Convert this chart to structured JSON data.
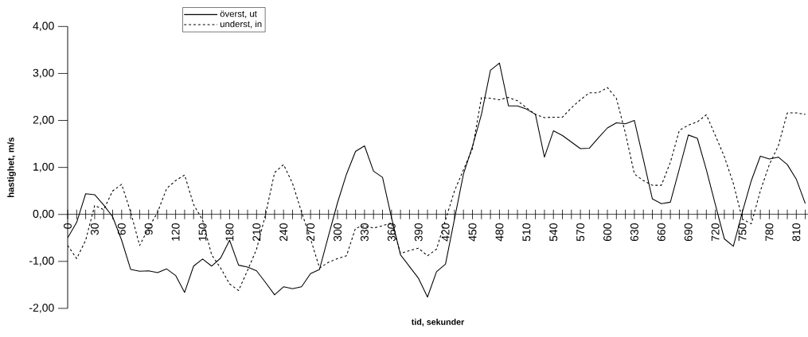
{
  "chart_data": {
    "type": "line",
    "xlabel": "tid, sekunder",
    "ylabel": "hastighet, m/s",
    "x": [
      0,
      10,
      20,
      30,
      40,
      50,
      60,
      70,
      80,
      90,
      100,
      110,
      120,
      130,
      140,
      150,
      160,
      170,
      180,
      190,
      200,
      210,
      220,
      230,
      240,
      250,
      260,
      270,
      280,
      290,
      300,
      310,
      320,
      330,
      340,
      350,
      360,
      370,
      380,
      390,
      400,
      410,
      420,
      430,
      440,
      450,
      460,
      470,
      480,
      490,
      500,
      510,
      520,
      530,
      540,
      550,
      560,
      570,
      580,
      590,
      600,
      610,
      620,
      630,
      640,
      650,
      660,
      670,
      680,
      690,
      700,
      710,
      720,
      730,
      740,
      750,
      760,
      770,
      780,
      790,
      800,
      810,
      820
    ],
    "series": [
      {
        "name": "överst, ut",
        "color": "#000000",
        "line_style": "solid",
        "values": [
          -0.5,
          -0.17,
          0.44,
          0.42,
          0.2,
          -0.05,
          -0.55,
          -1.17,
          -1.21,
          -1.2,
          -1.24,
          -1.16,
          -1.3,
          -1.66,
          -1.1,
          -0.95,
          -1.1,
          -0.93,
          -0.55,
          -1.08,
          -1.12,
          -1.2,
          -1.45,
          -1.71,
          -1.54,
          -1.58,
          -1.54,
          -1.26,
          -1.17,
          -0.45,
          0.25,
          0.86,
          1.34,
          1.46,
          0.92,
          0.79,
          -0.07,
          -0.86,
          -1.11,
          -1.36,
          -1.76,
          -1.22,
          -1.06,
          -0.1,
          0.86,
          1.45,
          2.13,
          3.07,
          3.22,
          2.31,
          2.31,
          2.24,
          2.13,
          1.22,
          1.78,
          1.68,
          1.54,
          1.4,
          1.41,
          1.63,
          1.84,
          1.95,
          1.93,
          2.0,
          1.17,
          0.33,
          0.23,
          0.26,
          0.97,
          1.69,
          1.62,
          0.95,
          0.21,
          -0.52,
          -0.68,
          0.05,
          0.72,
          1.24,
          1.18,
          1.22,
          1.06,
          0.75,
          0.23
        ]
      },
      {
        "name": "underst, in",
        "color": "#000000",
        "line_style": "dashed",
        "values": [
          -0.66,
          -0.94,
          -0.55,
          0.19,
          0.1,
          0.5,
          0.64,
          0.05,
          -0.66,
          -0.29,
          0.05,
          0.55,
          0.72,
          0.84,
          0.21,
          -0.12,
          -0.86,
          -1.14,
          -1.48,
          -1.62,
          -1.19,
          -0.74,
          0.0,
          0.89,
          1.06,
          0.66,
          0.05,
          -0.52,
          -1.14,
          -1.02,
          -0.94,
          -0.88,
          -0.29,
          -0.24,
          -0.29,
          -0.24,
          -0.18,
          -0.83,
          -0.77,
          -0.72,
          -0.88,
          -0.74,
          -0.12,
          0.5,
          0.95,
          1.4,
          2.49,
          2.47,
          2.44,
          2.49,
          2.42,
          2.27,
          2.13,
          2.06,
          2.07,
          2.07,
          2.27,
          2.44,
          2.59,
          2.59,
          2.7,
          2.47,
          1.73,
          0.86,
          0.72,
          0.62,
          0.62,
          1.11,
          1.79,
          1.9,
          1.97,
          2.12,
          1.68,
          1.23,
          0.66,
          -0.1,
          -0.2,
          0.5,
          1.06,
          1.46,
          2.16,
          2.16,
          2.13
        ]
      }
    ],
    "xlim": [
      0,
      823
    ],
    "ylim": [
      -2,
      4
    ],
    "xticks": [
      0,
      {
        "value": 10,
        "label": null
      },
      {
        "value": 20,
        "label": null
      },
      30,
      {
        "value": 40,
        "label": null
      },
      {
        "value": 50,
        "label": null
      },
      60,
      {
        "value": 70,
        "label": null
      },
      {
        "value": 80,
        "label": null
      },
      90,
      {
        "value": 100,
        "label": null
      },
      {
        "value": 110,
        "label": null
      },
      120,
      {
        "value": 130,
        "label": null
      },
      {
        "value": 140,
        "label": null
      },
      150,
      {
        "value": 160,
        "label": null
      },
      {
        "value": 170,
        "label": null
      },
      180,
      {
        "value": 190,
        "label": null
      },
      {
        "value": 200,
        "label": null
      },
      210,
      {
        "value": 220,
        "label": null
      },
      {
        "value": 230,
        "label": null
      },
      240,
      {
        "value": 250,
        "label": null
      },
      {
        "value": 260,
        "label": null
      },
      270,
      {
        "value": 280,
        "label": null
      },
      {
        "value": 290,
        "label": null
      },
      300,
      {
        "value": 310,
        "label": null
      },
      {
        "value": 320,
        "label": null
      },
      330,
      {
        "value": 340,
        "label": null
      },
      {
        "value": 350,
        "label": null
      },
      360,
      {
        "value": 370,
        "label": null
      },
      {
        "value": 380,
        "label": null
      },
      390,
      {
        "value": 400,
        "label": null
      },
      {
        "value": 410,
        "label": null
      },
      420,
      {
        "value": 430,
        "label": null
      },
      {
        "value": 440,
        "label": null
      },
      450,
      {
        "value": 460,
        "label": null
      },
      {
        "value": 470,
        "label": null
      },
      480,
      {
        "value": 490,
        "label": null
      },
      {
        "value": 500,
        "label": null
      },
      510,
      {
        "value": 520,
        "label": null
      },
      {
        "value": 530,
        "label": null
      },
      540,
      {
        "value": 550,
        "label": null
      },
      {
        "value": 560,
        "label": null
      },
      570,
      {
        "value": 580,
        "label": null
      },
      {
        "value": 590,
        "label": null
      },
      600,
      {
        "value": 610,
        "label": null
      },
      {
        "value": 620,
        "label": null
      },
      630,
      {
        "value": 640,
        "label": null
      },
      {
        "value": 650,
        "label": null
      },
      660,
      {
        "value": 670,
        "label": null
      },
      {
        "value": 680,
        "label": null
      },
      690,
      {
        "value": 700,
        "label": null
      },
      {
        "value": 710,
        "label": null
      },
      720,
      {
        "value": 730,
        "label": null
      },
      {
        "value": 740,
        "label": null
      },
      750,
      {
        "value": 760,
        "label": null
      },
      {
        "value": 770,
        "label": null
      },
      780,
      {
        "value": 790,
        "label": null
      },
      {
        "value": 800,
        "label": null
      },
      810,
      {
        "value": 820,
        "label": null
      }
    ],
    "yticks": [
      {
        "value": -2,
        "label": "-2,00"
      },
      {
        "value": -1,
        "label": "-1,00"
      },
      {
        "value": 0,
        "label": "0,00"
      },
      {
        "value": 1,
        "label": "1,00"
      },
      {
        "value": 2,
        "label": "2,00"
      },
      {
        "value": 3,
        "label": "3,00"
      },
      {
        "value": 4,
        "label": "4,00"
      }
    ],
    "legend": "top"
  }
}
